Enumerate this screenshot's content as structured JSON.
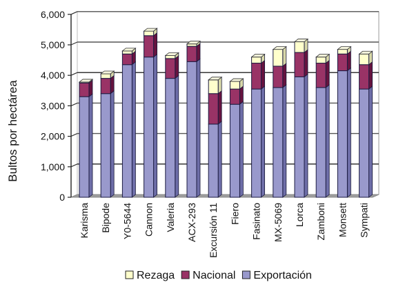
{
  "chart_data": {
    "type": "bar",
    "stacked": true,
    "three_d": true,
    "title": "",
    "xlabel": "",
    "ylabel": "Bultos por hectárea",
    "ylim": [
      0,
      6000
    ],
    "yticks": [
      0,
      1000,
      2000,
      3000,
      4000,
      5000,
      6000
    ],
    "ytick_labels": [
      "0",
      "1,000",
      "2,000",
      "3,000",
      "4,000",
      "5,000",
      "6,000"
    ],
    "grid": true,
    "legend_position": "bottom",
    "categories": [
      "Karisma",
      "Bipode",
      "Y0-5644",
      "Cannon",
      "Valeria",
      "ACX-293",
      "Excursión 11",
      "Fiero",
      "Fasinato",
      "MX-5069",
      "Lorca",
      "Zamboni",
      "Monsett",
      "Sympati"
    ],
    "series": [
      {
        "name": "Exportación",
        "color": "#9999CC",
        "side_color": "#6E6EA8",
        "values": [
          3300,
          3400,
          4350,
          4600,
          3900,
          4450,
          2400,
          3050,
          3550,
          3600,
          3950,
          3600,
          4150,
          3550
        ]
      },
      {
        "name": "Nacional",
        "color": "#993366",
        "side_color": "#66133F",
        "values": [
          450,
          500,
          350,
          700,
          650,
          500,
          1000,
          500,
          850,
          700,
          800,
          800,
          550,
          800
        ]
      },
      {
        "name": "Rezaga",
        "color": "#FFFFCC",
        "side_color": "#D8D8A8",
        "values": [
          30,
          150,
          100,
          150,
          100,
          80,
          450,
          250,
          200,
          550,
          350,
          200,
          150,
          350
        ]
      }
    ],
    "legend": [
      "Rezaga",
      "Nacional",
      "Exportación"
    ]
  }
}
